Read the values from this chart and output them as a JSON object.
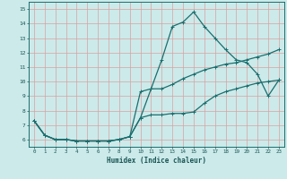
{
  "xlabel": "Humidex (Indice chaleur)",
  "bg_color": "#cceaea",
  "line_color": "#1a6e6e",
  "grid_color": "#d9a0a0",
  "xlim": [
    -0.5,
    23.5
  ],
  "ylim": [
    5.5,
    15.5
  ],
  "xticks": [
    0,
    1,
    2,
    3,
    4,
    5,
    6,
    7,
    8,
    9,
    10,
    11,
    12,
    13,
    14,
    15,
    16,
    17,
    18,
    19,
    20,
    21,
    22,
    23
  ],
  "yticks": [
    6,
    7,
    8,
    9,
    10,
    11,
    12,
    13,
    14,
    15
  ],
  "line1_x": [
    0,
    1,
    2,
    3,
    4,
    5,
    6,
    7,
    8,
    9,
    10,
    11,
    12,
    13,
    14,
    15,
    16,
    17,
    18,
    19,
    20,
    21,
    22,
    23
  ],
  "line1_y": [
    7.3,
    6.3,
    6.0,
    6.0,
    5.9,
    5.9,
    5.9,
    5.9,
    6.0,
    6.2,
    7.5,
    9.5,
    11.5,
    13.8,
    14.1,
    14.8,
    13.8,
    13.0,
    12.2,
    11.5,
    11.3,
    10.5,
    9.0,
    10.1
  ],
  "line2_x": [
    0,
    1,
    2,
    3,
    4,
    5,
    6,
    7,
    8,
    9,
    10,
    11,
    12,
    13,
    14,
    15,
    16,
    17,
    18,
    19,
    20,
    21,
    22,
    23
  ],
  "line2_y": [
    7.3,
    6.3,
    6.0,
    6.0,
    5.9,
    5.9,
    5.9,
    5.9,
    6.0,
    6.2,
    9.3,
    9.5,
    9.5,
    9.8,
    10.2,
    10.5,
    10.8,
    11.0,
    11.2,
    11.3,
    11.5,
    11.7,
    11.9,
    12.2
  ],
  "line3_x": [
    0,
    1,
    2,
    3,
    4,
    5,
    6,
    7,
    8,
    9,
    10,
    11,
    12,
    13,
    14,
    15,
    16,
    17,
    18,
    19,
    20,
    21,
    22,
    23
  ],
  "line3_y": [
    7.3,
    6.3,
    6.0,
    6.0,
    5.9,
    5.9,
    5.9,
    5.9,
    6.0,
    6.2,
    7.5,
    7.7,
    7.7,
    7.8,
    7.8,
    7.9,
    8.5,
    9.0,
    9.3,
    9.5,
    9.7,
    9.9,
    10.0,
    10.1
  ]
}
